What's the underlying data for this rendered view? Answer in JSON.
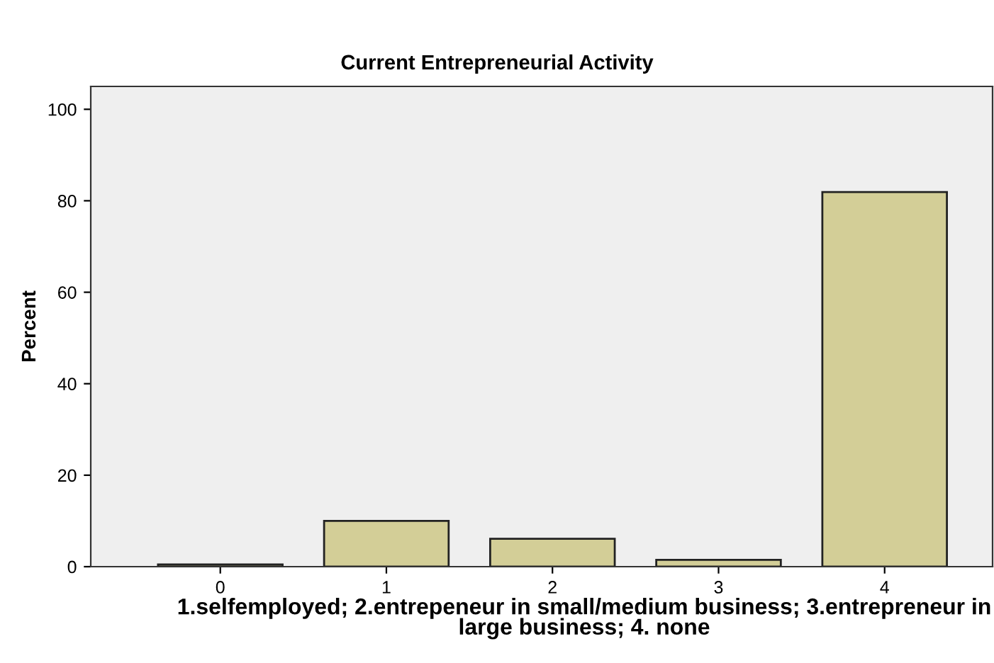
{
  "chart_data": {
    "type": "bar",
    "title": "Current Entrepreneurial Activity",
    "xlabel": "1.selfemployed; 2.entrepeneur in small/medium business; 3.entrepreneur in large business; 4. none",
    "ylabel": "Percent",
    "categories": [
      "0",
      "1",
      "2",
      "3",
      "4"
    ],
    "values": [
      0.5,
      10.0,
      6.1,
      1.5,
      81.9
    ],
    "color": "#d3ce97",
    "ylim": [
      0,
      105
    ],
    "yticks": [
      0,
      20,
      40,
      60,
      80,
      100
    ],
    "grid": false,
    "legend": false
  }
}
